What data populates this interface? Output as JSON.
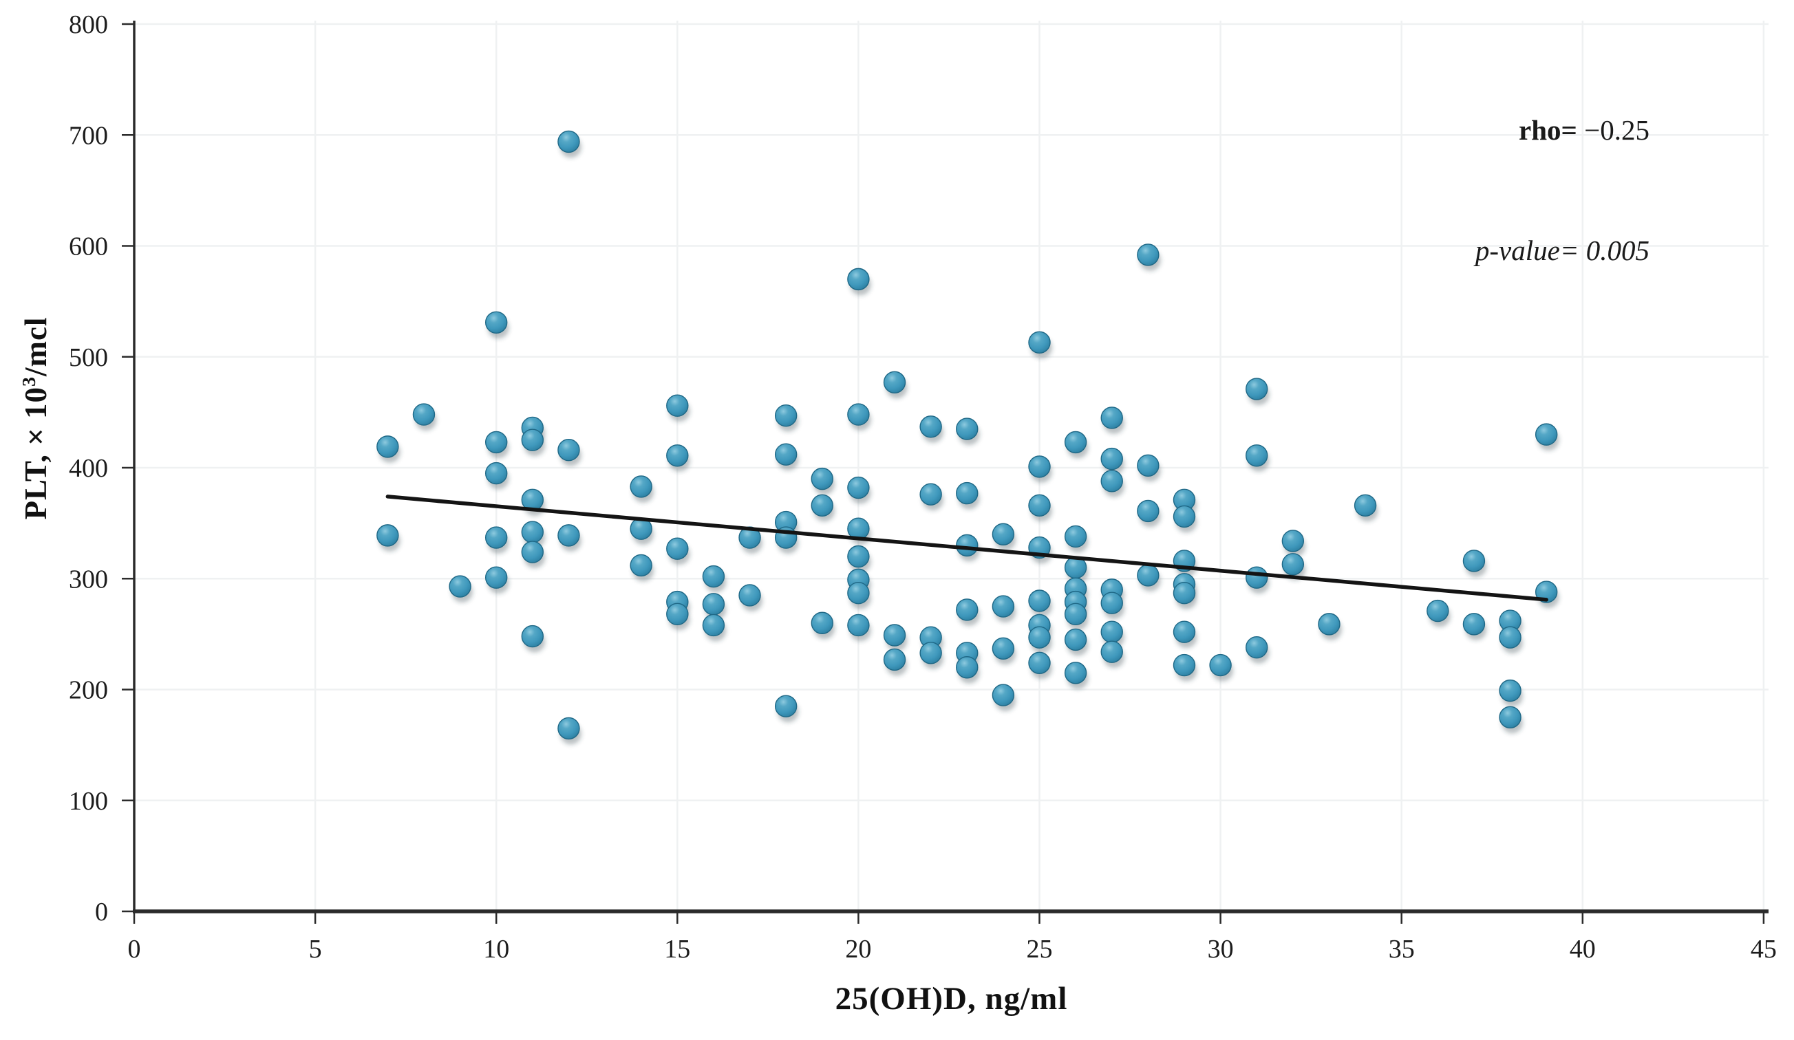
{
  "chart_data": {
    "type": "scatter",
    "title": "",
    "xlabel": "25(OH)D, ng/ml",
    "ylabel_prefix": "PLT, × 10",
    "ylabel_sup": "3",
    "ylabel_suffix": "/mcl",
    "xlim": [
      0,
      45
    ],
    "ylim": [
      0,
      800
    ],
    "x_ticks": [
      "0",
      "5",
      "10",
      "15",
      "20",
      "25",
      "30",
      "35",
      "40",
      "45"
    ],
    "y_ticks": [
      "0",
      "100",
      "200",
      "300",
      "400",
      "500",
      "600",
      "700",
      "800"
    ],
    "grid": true,
    "legend_position": "none",
    "annotation": {
      "rho_label": "rho= ",
      "rho_value": "−0.25",
      "p_label": "p-value= ",
      "p_value": "0.005"
    },
    "point_color": "#3f98bc",
    "point_edge": "#1f6886",
    "trend_color": "#141414",
    "trend": {
      "x1": 7,
      "y1": 374,
      "x2": 39,
      "y2": 281
    },
    "points": [
      [
        7,
        419
      ],
      [
        7,
        339
      ],
      [
        8,
        448
      ],
      [
        9,
        293
      ],
      [
        10,
        531
      ],
      [
        10,
        423
      ],
      [
        10,
        395
      ],
      [
        10,
        337
      ],
      [
        10,
        301
      ],
      [
        11,
        436
      ],
      [
        11,
        425
      ],
      [
        11,
        371
      ],
      [
        11,
        342
      ],
      [
        11,
        324
      ],
      [
        11,
        248
      ],
      [
        12,
        694
      ],
      [
        12,
        416
      ],
      [
        12,
        339
      ],
      [
        12,
        165
      ],
      [
        14,
        383
      ],
      [
        14,
        345
      ],
      [
        14,
        312
      ],
      [
        15,
        456
      ],
      [
        15,
        411
      ],
      [
        15,
        327
      ],
      [
        15,
        279
      ],
      [
        15,
        268
      ],
      [
        16,
        302
      ],
      [
        16,
        277
      ],
      [
        16,
        258
      ],
      [
        17,
        337
      ],
      [
        17,
        285
      ],
      [
        18,
        447
      ],
      [
        18,
        412
      ],
      [
        18,
        351
      ],
      [
        18,
        337
      ],
      [
        18,
        185
      ],
      [
        19,
        390
      ],
      [
        19,
        366
      ],
      [
        19,
        260
      ],
      [
        20,
        570
      ],
      [
        20,
        448
      ],
      [
        20,
        382
      ],
      [
        20,
        345
      ],
      [
        20,
        320
      ],
      [
        20,
        299
      ],
      [
        20,
        287
      ],
      [
        20,
        258
      ],
      [
        21,
        477
      ],
      [
        21,
        249
      ],
      [
        21,
        227
      ],
      [
        22,
        437
      ],
      [
        22,
        376
      ],
      [
        22,
        247
      ],
      [
        22,
        233
      ],
      [
        23,
        435
      ],
      [
        23,
        377
      ],
      [
        23,
        330
      ],
      [
        23,
        272
      ],
      [
        23,
        233
      ],
      [
        23,
        220
      ],
      [
        24,
        340
      ],
      [
        24,
        275
      ],
      [
        24,
        237
      ],
      [
        24,
        195
      ],
      [
        25,
        513
      ],
      [
        25,
        401
      ],
      [
        25,
        366
      ],
      [
        25,
        328
      ],
      [
        25,
        280
      ],
      [
        25,
        258
      ],
      [
        25,
        247
      ],
      [
        25,
        224
      ],
      [
        26,
        423
      ],
      [
        26,
        338
      ],
      [
        26,
        310
      ],
      [
        26,
        291
      ],
      [
        26,
        279
      ],
      [
        26,
        268
      ],
      [
        26,
        245
      ],
      [
        26,
        215
      ],
      [
        27,
        445
      ],
      [
        27,
        408
      ],
      [
        27,
        388
      ],
      [
        27,
        290
      ],
      [
        27,
        278
      ],
      [
        27,
        252
      ],
      [
        27,
        234
      ],
      [
        28,
        592
      ],
      [
        28,
        402
      ],
      [
        28,
        361
      ],
      [
        28,
        303
      ],
      [
        29,
        371
      ],
      [
        29,
        356
      ],
      [
        29,
        316
      ],
      [
        29,
        295
      ],
      [
        29,
        287
      ],
      [
        29,
        252
      ],
      [
        29,
        222
      ],
      [
        30,
        222
      ],
      [
        31,
        471
      ],
      [
        31,
        411
      ],
      [
        31,
        301
      ],
      [
        31,
        238
      ],
      [
        32,
        334
      ],
      [
        32,
        313
      ],
      [
        33,
        259
      ],
      [
        34,
        366
      ],
      [
        36,
        271
      ],
      [
        37,
        316
      ],
      [
        37,
        259
      ],
      [
        38,
        262
      ],
      [
        38,
        247
      ],
      [
        38,
        199
      ],
      [
        38,
        175
      ],
      [
        39,
        430
      ],
      [
        39,
        288
      ]
    ]
  }
}
